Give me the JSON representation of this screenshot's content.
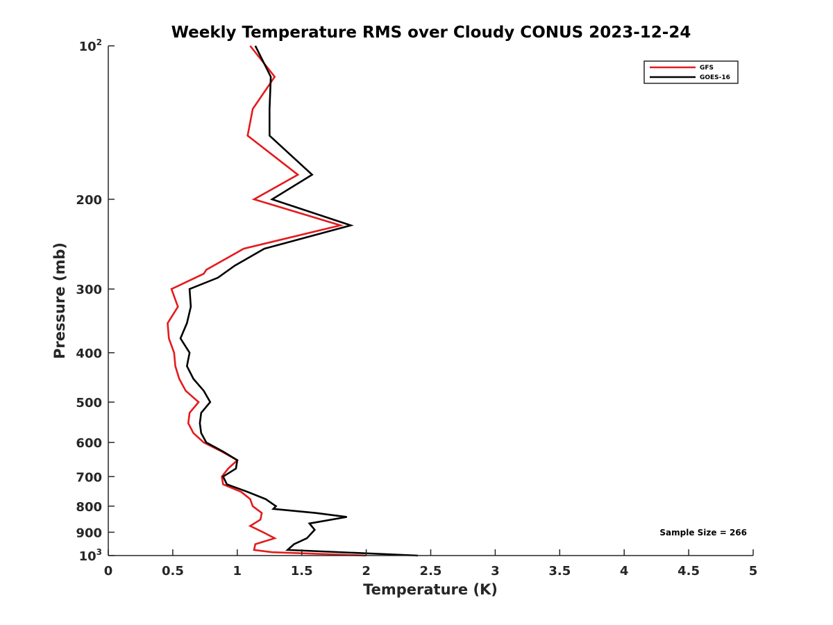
{
  "chart_data": {
    "type": "line",
    "title": "Weekly Temperature RMS over Cloudy CONUS 2023-12-24",
    "xlabel": "Temperature (K)",
    "ylabel": "Pressure (mb)",
    "xlim": [
      0,
      5
    ],
    "ylim": [
      100,
      1000
    ],
    "y_scale": "log",
    "y_reversed": true,
    "grid": false,
    "legend_position": "top-right",
    "x_ticks": [
      "0",
      "0.5",
      "1",
      "1.5",
      "2",
      "2.5",
      "3",
      "3.5",
      "4",
      "4.5",
      "5"
    ],
    "y_ticks": [
      {
        "value": 100,
        "base": "10",
        "exp": "2"
      },
      {
        "value": 200,
        "label": "200"
      },
      {
        "value": 300,
        "label": "300"
      },
      {
        "value": 400,
        "label": "400"
      },
      {
        "value": 500,
        "label": "500"
      },
      {
        "value": 600,
        "label": "600"
      },
      {
        "value": 700,
        "label": "700"
      },
      {
        "value": 800,
        "label": "800"
      },
      {
        "value": 900,
        "label": "900"
      },
      {
        "value": 1000,
        "base": "10",
        "exp": "3"
      }
    ],
    "annotation": "Sample Size = 266",
    "series": [
      {
        "name": "GFS",
        "color": "#e41a1c",
        "points": [
          [
            1.1,
            100
          ],
          [
            1.29,
            115
          ],
          [
            1.12,
            133
          ],
          [
            1.08,
            150
          ],
          [
            1.47,
            179
          ],
          [
            1.13,
            200
          ],
          [
            1.8,
            225
          ],
          [
            1.05,
            250
          ],
          [
            0.76,
            275
          ],
          [
            0.74,
            280
          ],
          [
            0.49,
            300
          ],
          [
            0.54,
            325
          ],
          [
            0.46,
            350
          ],
          [
            0.47,
            375
          ],
          [
            0.51,
            400
          ],
          [
            0.52,
            425
          ],
          [
            0.55,
            450
          ],
          [
            0.6,
            475
          ],
          [
            0.7,
            500
          ],
          [
            0.63,
            525
          ],
          [
            0.62,
            550
          ],
          [
            0.66,
            575
          ],
          [
            0.74,
            600
          ],
          [
            0.88,
            625
          ],
          [
            1.0,
            650
          ],
          [
            0.93,
            675
          ],
          [
            0.88,
            700
          ],
          [
            0.89,
            725
          ],
          [
            1.03,
            750
          ],
          [
            1.1,
            775
          ],
          [
            1.12,
            800
          ],
          [
            1.19,
            825
          ],
          [
            1.18,
            850
          ],
          [
            1.1,
            875
          ],
          [
            1.2,
            900
          ],
          [
            1.29,
            925
          ],
          [
            1.14,
            950
          ],
          [
            1.13,
            975
          ],
          [
            1.27,
            985
          ],
          [
            2.0,
            1000
          ]
        ]
      },
      {
        "name": "GOES-16",
        "color": "#000000",
        "points": [
          [
            1.14,
            100
          ],
          [
            1.26,
            115
          ],
          [
            1.25,
            133
          ],
          [
            1.25,
            150
          ],
          [
            1.58,
            179
          ],
          [
            1.27,
            200
          ],
          [
            1.88,
            225
          ],
          [
            1.21,
            250
          ],
          [
            0.98,
            270
          ],
          [
            0.85,
            285
          ],
          [
            0.63,
            300
          ],
          [
            0.64,
            325
          ],
          [
            0.61,
            350
          ],
          [
            0.56,
            375
          ],
          [
            0.63,
            400
          ],
          [
            0.61,
            425
          ],
          [
            0.66,
            450
          ],
          [
            0.74,
            475
          ],
          [
            0.79,
            500
          ],
          [
            0.72,
            525
          ],
          [
            0.71,
            550
          ],
          [
            0.72,
            575
          ],
          [
            0.76,
            600
          ],
          [
            0.89,
            625
          ],
          [
            1.0,
            650
          ],
          [
            0.99,
            675
          ],
          [
            0.89,
            700
          ],
          [
            0.92,
            725
          ],
          [
            1.08,
            750
          ],
          [
            1.22,
            775
          ],
          [
            1.3,
            800
          ],
          [
            1.28,
            810
          ],
          [
            1.61,
            825
          ],
          [
            1.85,
            840
          ],
          [
            1.56,
            865
          ],
          [
            1.6,
            890
          ],
          [
            1.54,
            925
          ],
          [
            1.44,
            950
          ],
          [
            1.39,
            975
          ],
          [
            2.4,
            1000
          ]
        ]
      }
    ]
  }
}
